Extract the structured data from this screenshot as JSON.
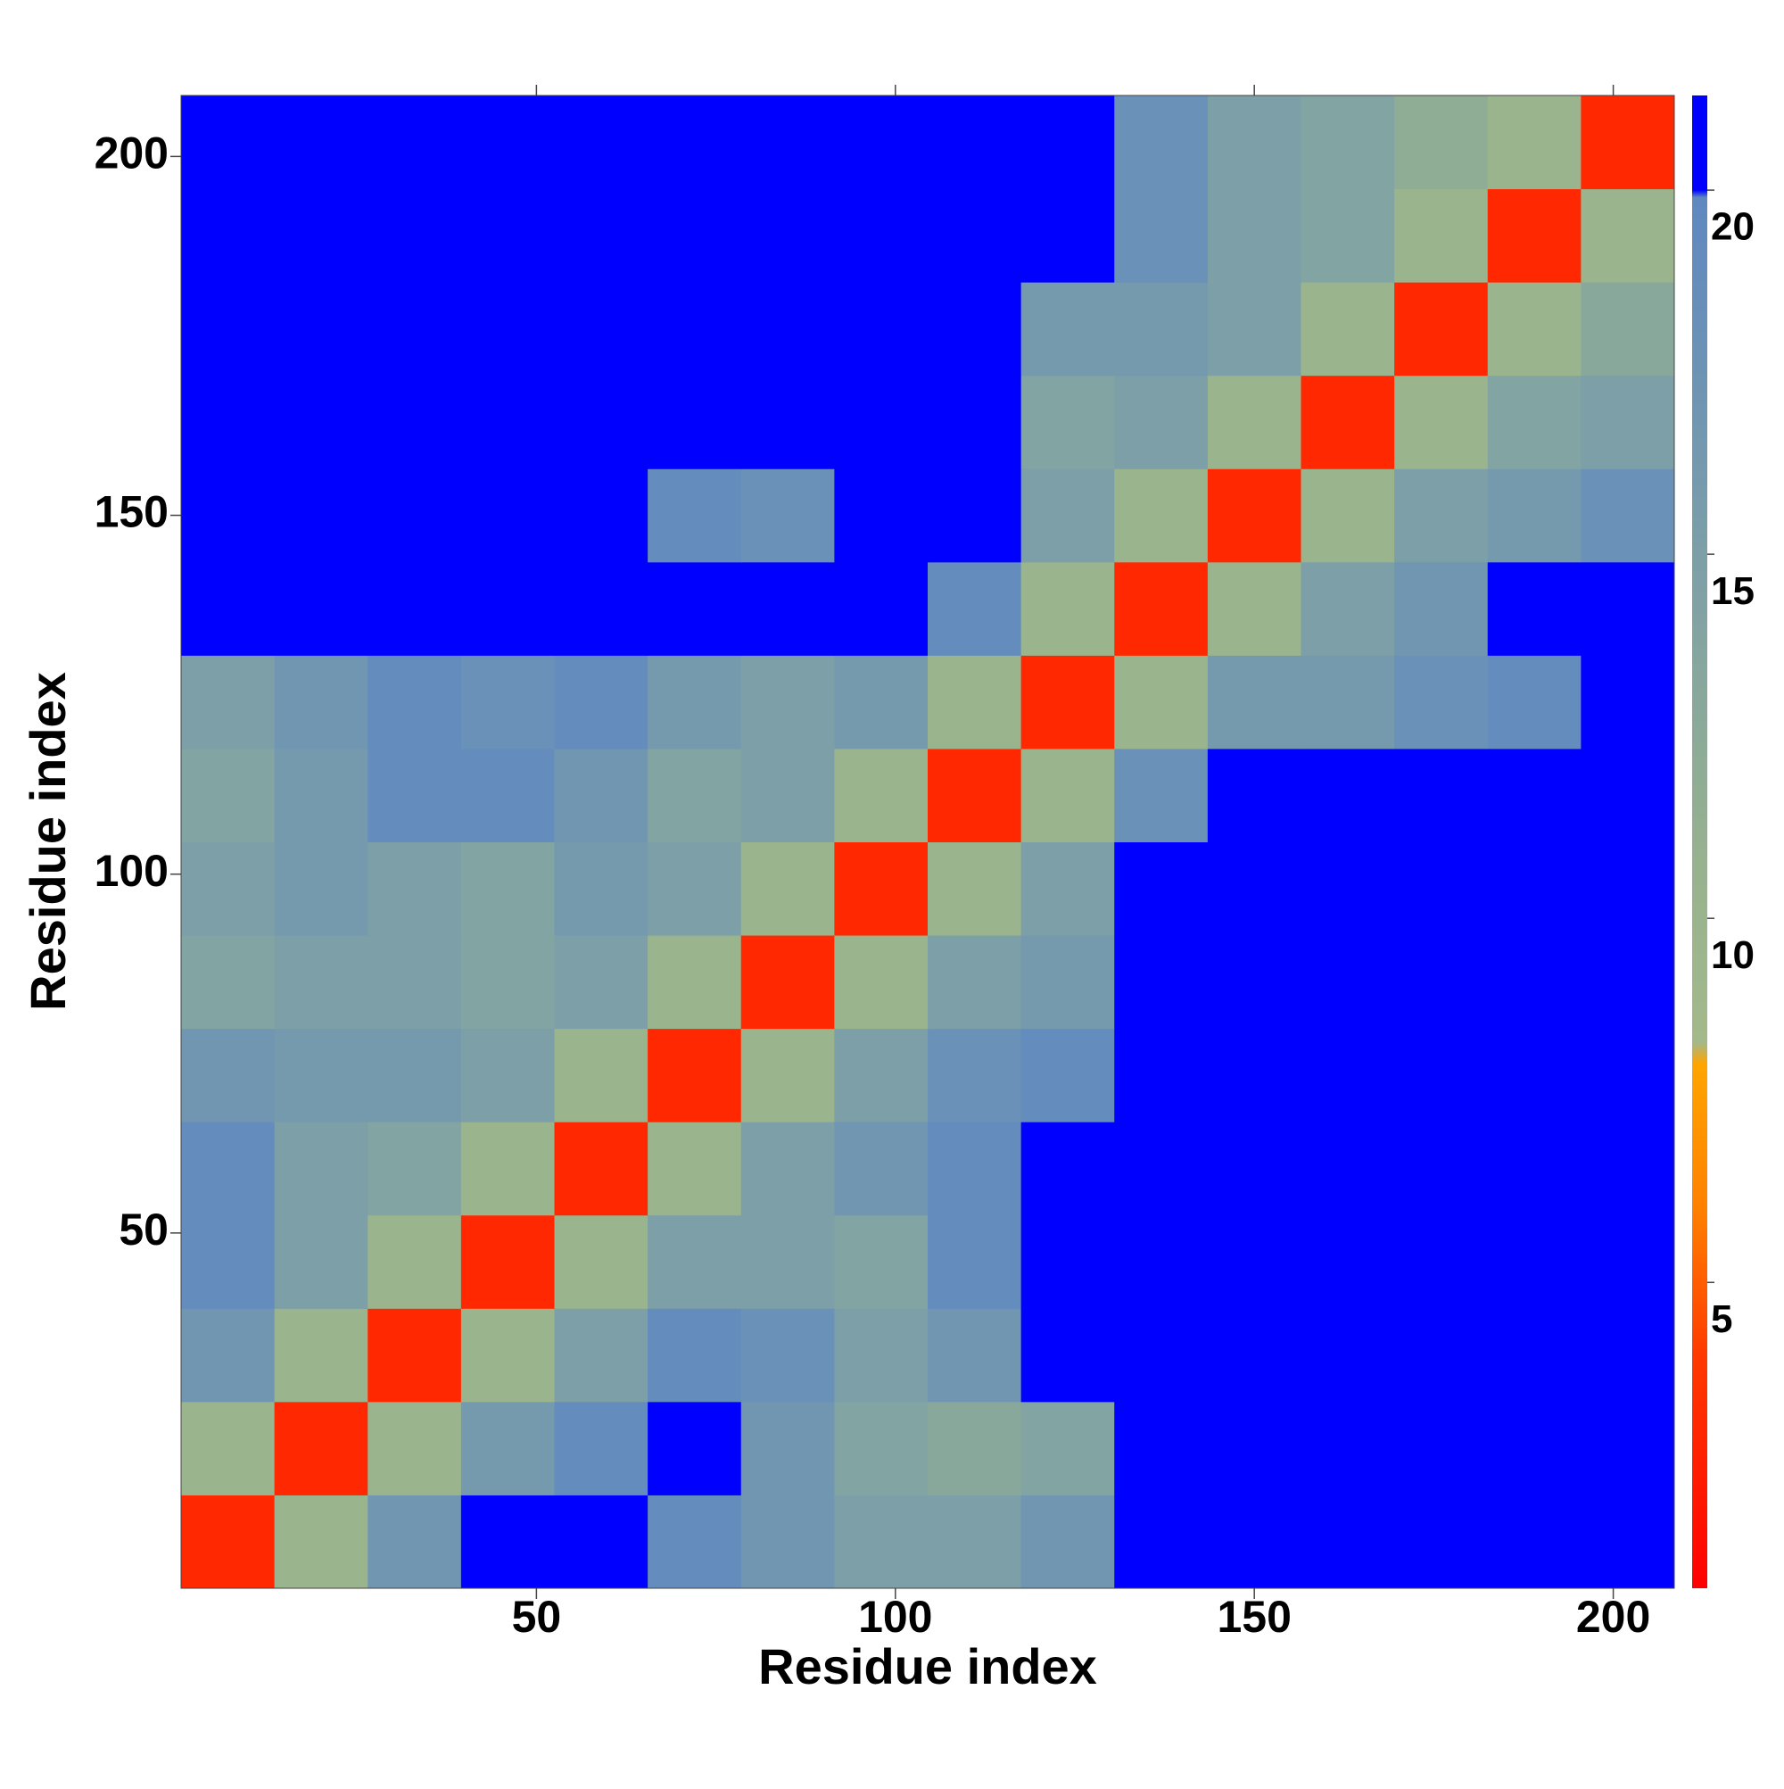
{
  "chart_data": {
    "type": "heatmap",
    "xlabel": "Residue index",
    "ylabel": "Residue index",
    "x": [
      7,
      20,
      33,
      46,
      59,
      72,
      85,
      98,
      111,
      124,
      137,
      150,
      163,
      176,
      189,
      202
    ],
    "y": [
      7,
      20,
      33,
      46,
      59,
      72,
      85,
      98,
      111,
      124,
      137,
      150,
      163,
      176,
      189,
      202
    ],
    "z": [
      [
        3,
        10,
        17,
        21,
        21,
        19,
        17,
        15,
        15,
        17,
        21,
        21,
        21,
        21,
        21,
        21
      ],
      [
        10,
        3,
        10,
        16,
        19,
        21,
        17,
        14,
        13,
        14,
        21,
        21,
        21,
        21,
        21,
        21
      ],
      [
        17,
        10,
        3,
        10,
        15,
        19,
        18,
        15,
        17,
        21,
        21,
        21,
        21,
        21,
        21,
        21
      ],
      [
        19,
        15,
        10,
        3,
        10,
        15,
        15,
        14,
        19,
        21,
        21,
        21,
        21,
        21,
        21,
        21
      ],
      [
        19,
        15,
        14,
        10,
        3,
        10,
        15,
        17,
        19,
        20,
        21,
        21,
        21,
        21,
        21,
        21
      ],
      [
        17,
        16,
        16,
        15,
        10,
        3,
        10,
        15,
        18,
        19,
        21,
        21,
        21,
        21,
        21,
        21
      ],
      [
        14,
        15,
        15,
        14,
        15,
        10,
        3,
        10,
        15,
        16,
        21,
        20,
        21,
        21,
        21,
        21
      ],
      [
        15,
        16,
        15,
        14,
        16,
        15,
        10,
        3,
        10,
        15,
        21,
        21,
        21,
        21,
        21,
        21
      ],
      [
        14,
        16,
        19,
        19,
        17,
        14,
        15,
        10,
        3,
        10,
        18,
        21,
        21,
        21,
        21,
        21
      ],
      [
        15,
        17,
        19,
        18,
        19,
        16,
        15,
        16,
        10,
        3,
        10,
        16,
        16,
        18,
        19,
        20
      ],
      [
        21,
        21,
        21,
        21,
        21,
        21,
        21,
        21,
        19,
        10,
        3,
        10,
        15,
        17,
        20,
        21
      ],
      [
        20,
        21,
        21,
        21,
        21,
        19,
        18,
        21,
        21,
        15,
        10,
        3,
        10,
        15,
        16,
        18
      ],
      [
        21,
        21,
        21,
        21,
        21,
        21,
        20,
        21,
        21,
        14,
        15,
        10,
        3,
        10,
        14,
        15
      ],
      [
        21,
        21,
        21,
        21,
        21,
        21,
        21,
        21,
        21,
        16,
        16,
        15,
        10,
        3,
        10,
        13
      ],
      [
        21,
        21,
        21,
        21,
        21,
        21,
        21,
        21,
        20,
        20,
        18,
        15,
        14,
        10,
        3,
        10
      ],
      [
        21,
        21,
        21,
        21,
        21,
        21,
        21,
        21,
        21,
        21,
        18,
        15,
        14,
        12,
        10,
        3
      ]
    ],
    "xlim": [
      0.5,
      208.5
    ],
    "ylim": [
      0.5,
      208.5
    ],
    "xticks": [
      50,
      100,
      150,
      200
    ],
    "yticks": [
      50,
      100,
      150,
      200
    ],
    "clim": [
      0.8,
      21.3
    ],
    "cticks": [
      5,
      10,
      15,
      20
    ],
    "colorscale": [
      [
        0.8,
        "#ff0000"
      ],
      [
        4,
        "#ff3a00"
      ],
      [
        6,
        "#ff8000"
      ],
      [
        8,
        "#ffa500"
      ],
      [
        8.3,
        "#a3b98a"
      ],
      [
        11,
        "#95b18f"
      ],
      [
        15,
        "#7c9fa8"
      ],
      [
        19.9,
        "#5f88c0"
      ],
      [
        20,
        "#0000ff"
      ],
      [
        21.3,
        "#0000ff"
      ]
    ]
  }
}
